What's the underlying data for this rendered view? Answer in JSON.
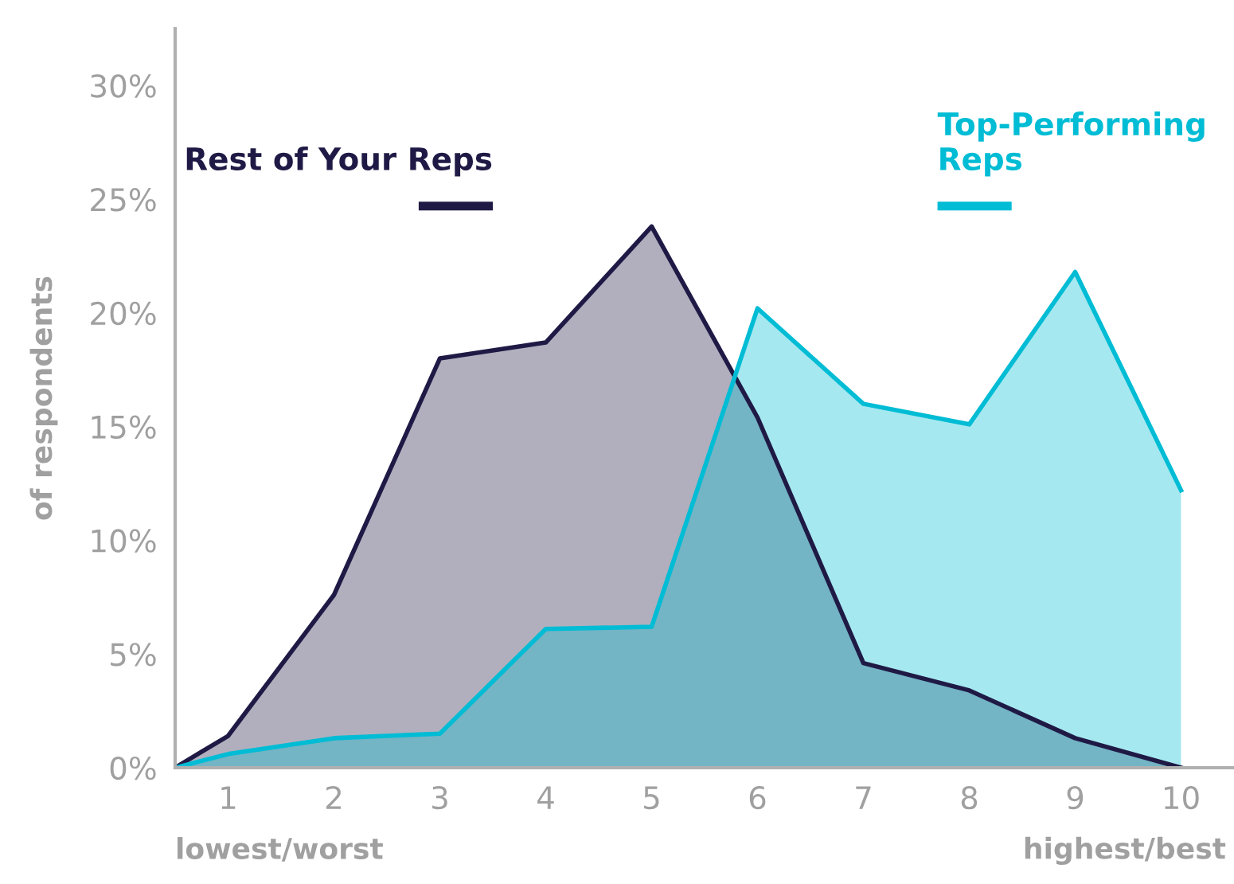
{
  "chart_data": {
    "type": "area",
    "x": [
      0.5,
      1,
      2,
      3,
      4,
      5,
      6,
      7,
      8,
      9,
      10
    ],
    "series": [
      {
        "name": "Rest of Your Reps",
        "color": "#1f1a45",
        "values": [
          0,
          1.4,
          7.6,
          18.0,
          18.7,
          23.8,
          15.4,
          4.6,
          3.4,
          1.3,
          0
        ]
      },
      {
        "name": "Top-Performing Reps",
        "color": "#00bcd4",
        "values": [
          0,
          0.6,
          1.3,
          1.5,
          6.1,
          6.2,
          20.2,
          16.0,
          15.1,
          21.8,
          12.2
        ]
      }
    ],
    "ylabel": "of respondents",
    "annotations": [
      "lowest/worst",
      "highest/best"
    ],
    "xlim": [
      0.5,
      10.5
    ],
    "xticks": [
      1,
      2,
      3,
      4,
      5,
      6,
      7,
      8,
      9,
      10
    ],
    "ylim": [
      0,
      32.5
    ],
    "yticks": [
      {
        "value": 0,
        "label": "0%"
      },
      {
        "value": 5,
        "label": "5%"
      },
      {
        "value": 10,
        "label": "10%"
      },
      {
        "value": 15,
        "label": "15%"
      },
      {
        "value": 20,
        "label": "20%"
      },
      {
        "value": 25,
        "label": "25%"
      },
      {
        "value": 30,
        "label": "30%"
      }
    ],
    "grid": false,
    "legend": "top"
  }
}
